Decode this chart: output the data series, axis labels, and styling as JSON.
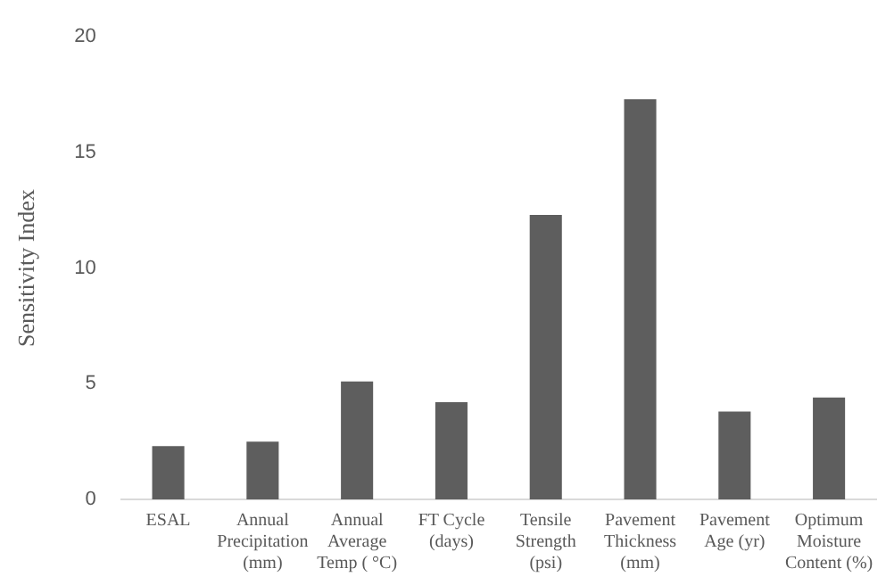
{
  "chart_data": {
    "type": "bar",
    "ylabel": "Sensitivity Index",
    "categories": [
      "ESAL",
      "Annual\nPrecipitation\n(mm)",
      "Annual\nAverage\nTemp ( °C)",
      "FT Cycle\n(days)",
      "Tensile\nStrength\n(psi)",
      "Pavement\nThickness\n(mm)",
      "Pavement\nAge (yr)",
      "Optimum\nMoisture\nContent (%)"
    ],
    "values": [
      2.3,
      2.5,
      5.1,
      4.2,
      12.3,
      17.3,
      3.8,
      4.4
    ],
    "color": "#5e5e5e",
    "ylim": [
      0,
      20
    ],
    "yticks": [
      0,
      5,
      10,
      15,
      20
    ],
    "grid": false,
    "legend": false
  }
}
